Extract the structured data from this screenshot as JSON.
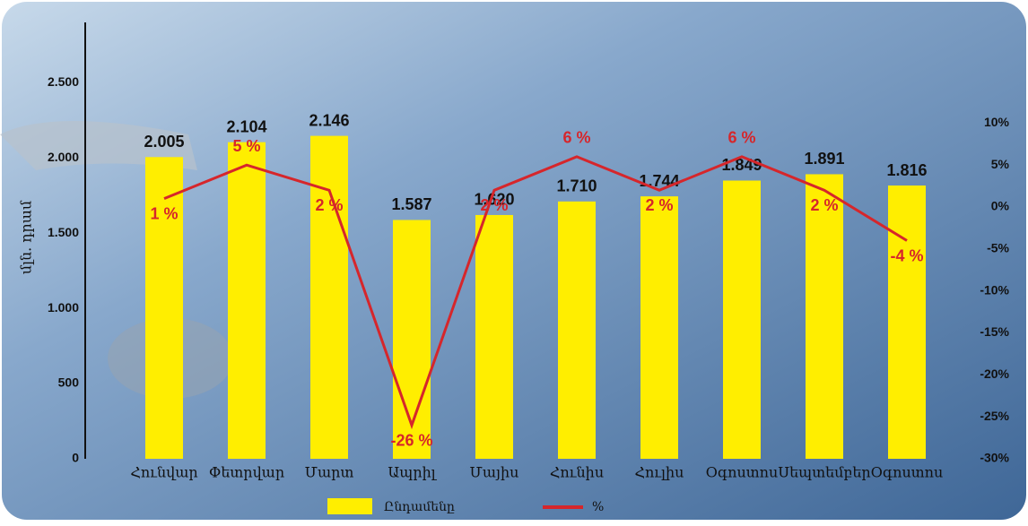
{
  "chart_data": {
    "type": "bar",
    "y_label": "մլն. դրամ",
    "categories": [
      "Հունվար",
      "Փետրվար",
      "Մարտ",
      "Ապրիլ",
      "Մայիս",
      "Հունիս",
      "Հուլիս",
      "Օգոստոս",
      "Սեպտեմբեր",
      "Օգոստոս"
    ],
    "series": [
      {
        "name": "Ընդամենը",
        "type": "bar",
        "color": "#ffee00",
        "values": [
          2005,
          2104,
          2146,
          1587,
          1620,
          1710,
          1744,
          1849,
          1891,
          1816
        ],
        "value_labels": [
          "2.005",
          "2.104",
          "2.146",
          "1.587",
          "1.620",
          "1.710",
          "1.744",
          "1.849",
          "1.891",
          "1.816"
        ]
      },
      {
        "name": "%",
        "type": "line",
        "axis": "y2",
        "color": "#d6262b",
        "values": [
          1,
          5,
          2,
          -26,
          2,
          6,
          2,
          6,
          2,
          -4
        ],
        "value_labels": [
          "1 %",
          "5 %",
          "2 %",
          "-26 %",
          "2 %",
          "6 %",
          "2 %",
          "6 %",
          "2 %",
          "-4 %"
        ]
      }
    ],
    "ylim": [
      0,
      2900
    ],
    "yticks": [
      0,
      500,
      {
        "value": 1000,
        "label": "1.000"
      },
      {
        "value": 1500,
        "label": "1.500"
      },
      {
        "value": 2000,
        "label": "2.000"
      },
      {
        "value": 2500,
        "label": "2.500"
      }
    ],
    "y2lim": [
      -30,
      22
    ],
    "y2ticks": [
      {
        "value": -30,
        "label": "-30%"
      },
      {
        "value": -25,
        "label": "-25%"
      },
      {
        "value": -20,
        "label": "-20%"
      },
      {
        "value": -15,
        "label": "-15%"
      },
      {
        "value": -10,
        "label": "-10%"
      },
      {
        "value": -5,
        "label": "-5%"
      },
      {
        "value": 0,
        "label": "0%"
      },
      {
        "value": 5,
        "label": "5%"
      },
      {
        "value": 10,
        "label": "10%"
      }
    ]
  }
}
